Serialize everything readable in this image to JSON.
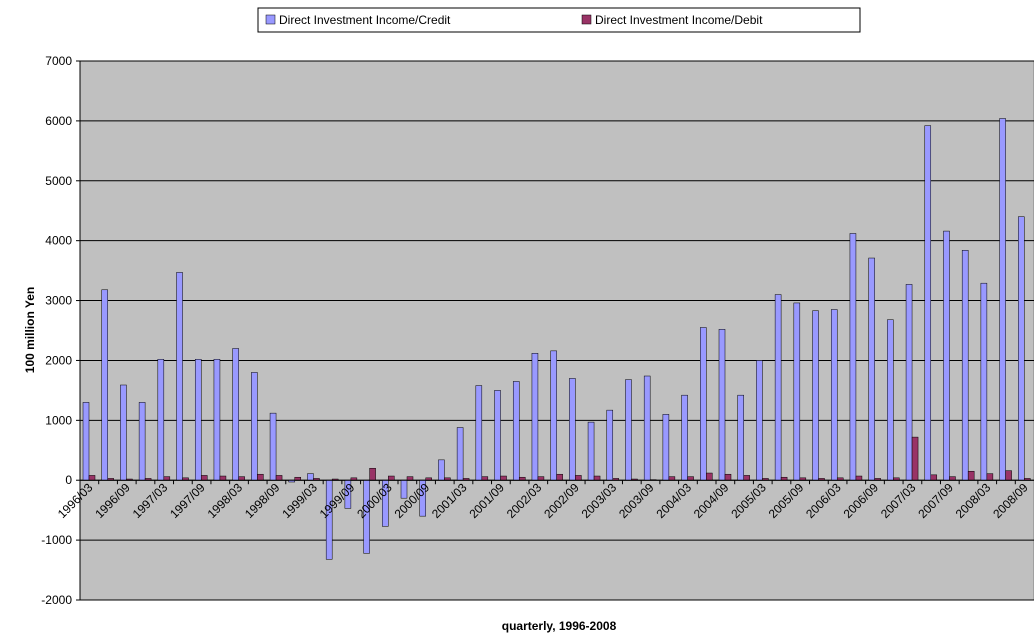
{
  "chart_data": {
    "type": "bar",
    "x_label": "quarterly, 1996-2008",
    "y_label": "100 million Yen",
    "categories": [
      "1996/03",
      null,
      "1996/09",
      null,
      "1997/03",
      null,
      "1997/09",
      null,
      "1998/03",
      null,
      "1998/09",
      null,
      "1999/03",
      null,
      "1999/09",
      null,
      "2000/03",
      null,
      "2000/09",
      null,
      "2001/03",
      null,
      "2001/09",
      null,
      "2002/03",
      null,
      "2002/09",
      null,
      "2003/03",
      null,
      "2003/09",
      null,
      "2004/03",
      null,
      "2004/09",
      null,
      "2005/03",
      null,
      "2005/09",
      null,
      "2006/03",
      null,
      "2006/09",
      null,
      "2007/03",
      null,
      "2007/09",
      null,
      "2008/03",
      null,
      "2008/09"
    ],
    "series": [
      {
        "name": "Direct Investment Income/Credit",
        "color": "#9999ff",
        "values": [
          1300,
          3180,
          1590,
          1300,
          2020,
          3470,
          2020,
          2020,
          2200,
          1800,
          1120,
          -30,
          110,
          -1320,
          -470,
          -1220,
          -770,
          -300,
          -600,
          340,
          880,
          1580,
          1500,
          1650,
          2120,
          2160,
          1700,
          970,
          1170,
          1680,
          1740,
          1100,
          1420,
          2550,
          2520,
          1420,
          2000,
          3100,
          2960,
          2830,
          2850,
          4120,
          3710,
          2680,
          3270,
          5920,
          4160,
          3840,
          3290,
          6040,
          4400
        ]
      },
      {
        "name": "Direct Investment Income/Debit",
        "color": "#993366",
        "values": [
          80,
          30,
          20,
          30,
          60,
          40,
          80,
          70,
          60,
          100,
          80,
          50,
          30,
          20,
          40,
          200,
          70,
          60,
          40,
          40,
          30,
          60,
          70,
          50,
          60,
          100,
          80,
          70,
          30,
          20,
          10,
          60,
          60,
          120,
          100,
          80,
          30,
          50,
          40,
          30,
          40,
          70,
          30,
          40,
          720,
          90,
          60,
          150,
          110,
          160,
          30
        ]
      }
    ],
    "ylim": [
      -2000,
      7000
    ],
    "yticks": [
      -2000,
      -1000,
      0,
      1000,
      2000,
      3000,
      4000,
      5000,
      6000,
      7000
    ],
    "grid": true,
    "legend": "top"
  }
}
